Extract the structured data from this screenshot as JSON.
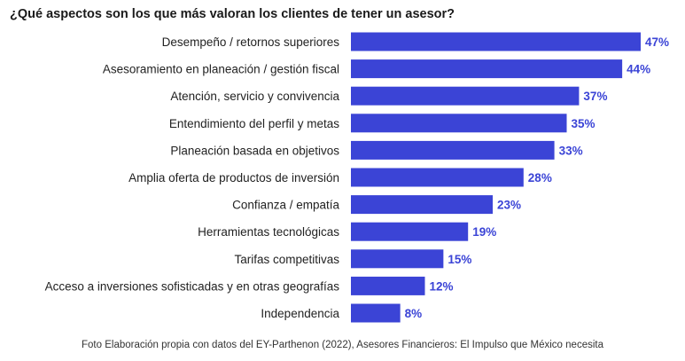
{
  "title": "¿Qué aspectos son los que más valoran los clientes de tener un asesor?",
  "source": "Foto Elaboración propia con datos del EY-Parthenon (2022), Asesores Financieros: El Impulso que México necesita",
  "colors": {
    "bar": "#3b44d6",
    "value_label": "#3b44d6"
  },
  "chart_data": {
    "type": "bar",
    "orientation": "horizontal",
    "title": "¿Qué aspectos son los que más valoran los clientes de tener un asesor?",
    "categories": [
      "Desempeño / retornos superiores",
      "Asesoramiento en planeación / gestión fiscal",
      "Atención, servicio y convivencia",
      "Entendimiento del perfil y metas",
      "Planeación basada en objetivos",
      "Amplia oferta de productos de inversión",
      "Confianza / empatía",
      "Herramientas tecnológicas",
      "Tarifas competitivas",
      "Acceso a inversiones sofisticadas y en otras geografías",
      "Independencia"
    ],
    "values": [
      47,
      44,
      37,
      35,
      33,
      28,
      23,
      19,
      15,
      12,
      8
    ],
    "value_labels": [
      "47%",
      "44%",
      "37%",
      "35%",
      "33%",
      "28%",
      "23%",
      "19%",
      "15%",
      "12%",
      "8%"
    ],
    "unit": "%",
    "xlim": [
      0,
      47
    ],
    "grid": false,
    "legend": "none"
  }
}
